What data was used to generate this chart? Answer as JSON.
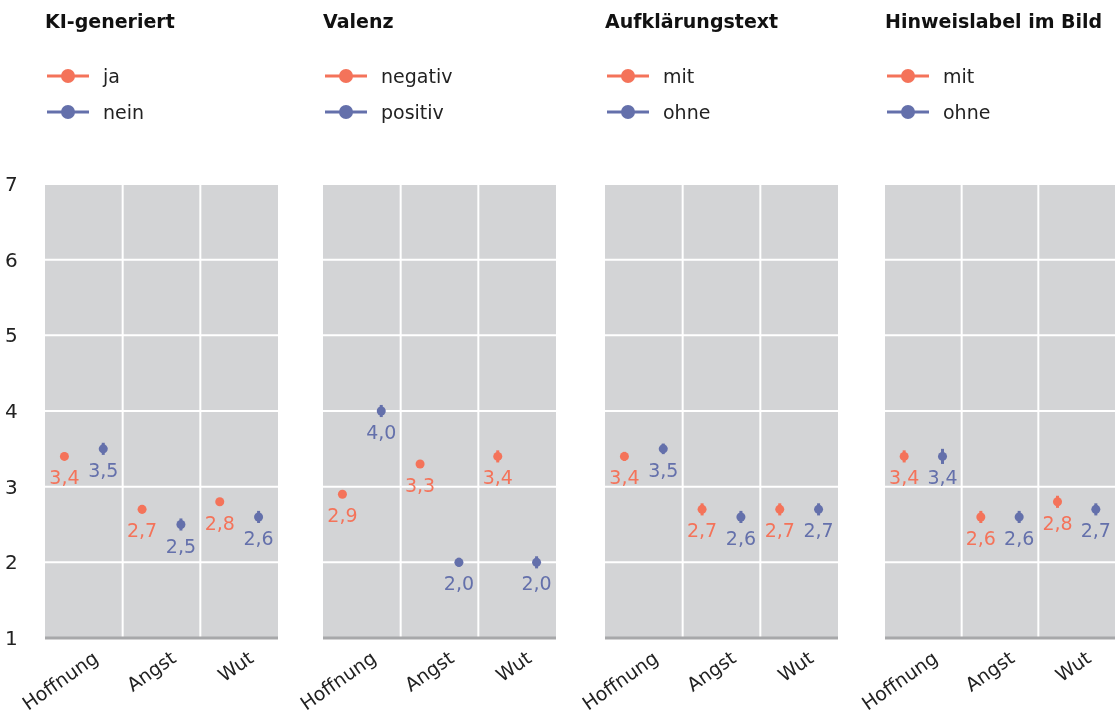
{
  "chart_data": [
    {
      "type": "scatter",
      "title": "KI-generiert",
      "categories": [
        "Hoffnung",
        "Angst",
        "Wut"
      ],
      "ylim": [
        1,
        7
      ],
      "yticks": [
        1,
        2,
        3,
        4,
        5,
        6,
        7
      ],
      "grid": true,
      "legend": "top left",
      "marker": "circle",
      "tick_labels": "xy",
      "series": [
        {
          "name": "ja",
          "color": "#f4735a",
          "values": [
            3.4,
            2.7,
            2.8
          ],
          "errors": [
            0.05,
            0.05,
            0.05
          ],
          "value_labels": [
            "3,4",
            "2,7",
            "2,8"
          ]
        },
        {
          "name": "nein",
          "color": "#6470ab",
          "values": [
            3.5,
            2.5,
            2.6
          ],
          "errors": [
            0.08,
            0.08,
            0.08
          ],
          "value_labels": [
            "3,5",
            "2,5",
            "2,6"
          ]
        }
      ]
    },
    {
      "type": "scatter",
      "title": "Valenz",
      "categories": [
        "Hoffnung",
        "Angst",
        "Wut"
      ],
      "ylim": [
        1,
        7
      ],
      "yticks": [
        1,
        2,
        3,
        4,
        5,
        6,
        7
      ],
      "grid": true,
      "legend": "top left",
      "marker": "circle",
      "tick_labels": "x",
      "series": [
        {
          "name": "negativ",
          "color": "#f4735a",
          "values": [
            2.9,
            3.3,
            3.4
          ],
          "errors": [
            0.05,
            0.05,
            0.08
          ],
          "value_labels": [
            "2,9",
            "3,3",
            "3,4"
          ]
        },
        {
          "name": "positiv",
          "color": "#6470ab",
          "values": [
            4.0,
            2.0,
            2.0
          ],
          "errors": [
            0.08,
            0.06,
            0.08
          ],
          "value_labels": [
            "4,0",
            "2,0",
            "2,0"
          ]
        }
      ]
    },
    {
      "type": "scatter",
      "title": "Aufklärungstext",
      "categories": [
        "Hoffnung",
        "Angst",
        "Wut"
      ],
      "ylim": [
        1,
        7
      ],
      "yticks": [
        1,
        2,
        3,
        4,
        5,
        6,
        7
      ],
      "grid": true,
      "legend": "top left",
      "marker": "circle",
      "tick_labels": "x",
      "series": [
        {
          "name": "mit",
          "color": "#f4735a",
          "values": [
            3.4,
            2.7,
            2.7
          ],
          "errors": [
            0.06,
            0.08,
            0.08
          ],
          "value_labels": [
            "3,4",
            "2,7",
            "2,7"
          ]
        },
        {
          "name": "ohne",
          "color": "#6470ab",
          "values": [
            3.5,
            2.6,
            2.7
          ],
          "errors": [
            0.07,
            0.08,
            0.08
          ],
          "value_labels": [
            "3,5",
            "2,6",
            "2,7"
          ]
        }
      ]
    },
    {
      "type": "scatter",
      "title": "Hinweislabel im Bild",
      "categories": [
        "Hoffnung",
        "Angst",
        "Wut"
      ],
      "ylim": [
        1,
        7
      ],
      "yticks": [
        1,
        2,
        3,
        4,
        5,
        6,
        7
      ],
      "grid": true,
      "legend": "top left",
      "marker": "circle",
      "tick_labels": "x",
      "series": [
        {
          "name": "mit",
          "color": "#f4735a",
          "values": [
            3.4,
            2.6,
            2.8
          ],
          "errors": [
            0.08,
            0.08,
            0.08
          ],
          "value_labels": [
            "3,4",
            "2,6",
            "2,8"
          ]
        },
        {
          "name": "ohne",
          "color": "#6470ab",
          "values": [
            3.4,
            2.6,
            2.7
          ],
          "errors": [
            0.1,
            0.08,
            0.08
          ],
          "value_labels": [
            "3,4",
            "2,6",
            "2,7"
          ]
        }
      ]
    }
  ]
}
